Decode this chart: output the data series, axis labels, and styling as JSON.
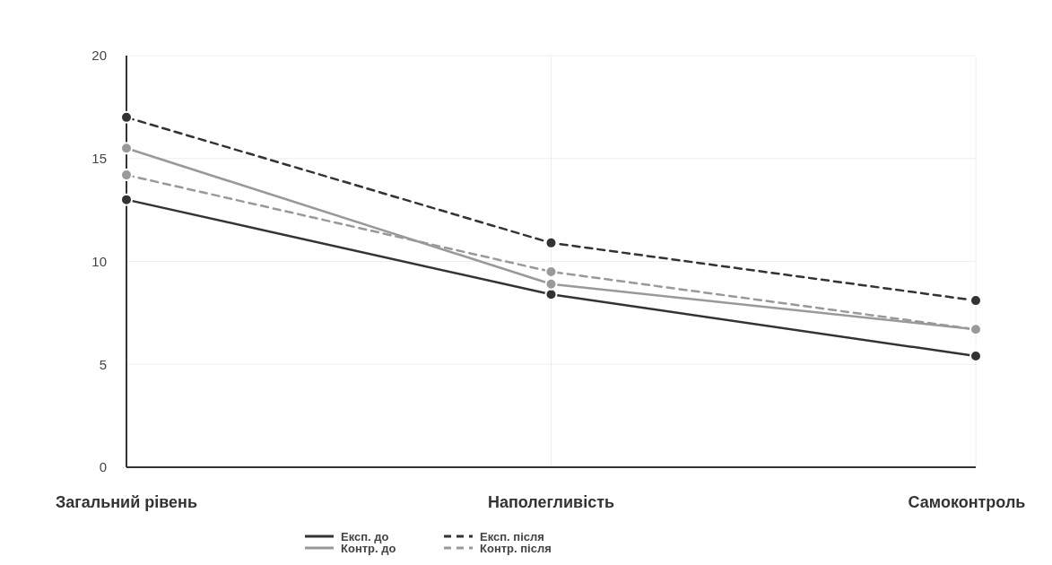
{
  "chart_data": {
    "type": "line",
    "categories": [
      "Загальний рівень",
      "Наполегливість",
      "Самоконтроль"
    ],
    "series": [
      {
        "name": "Експ. до",
        "color": "#333333",
        "line_style": "solid",
        "values": [
          13,
          8.4,
          5.4
        ]
      },
      {
        "name": "Контр. до",
        "color": "#999999",
        "line_style": "solid",
        "values": [
          15.5,
          8.9,
          6.7
        ]
      },
      {
        "name": "Експ. після",
        "color": "#333333",
        "line_style": "dashed",
        "values": [
          17,
          10.9,
          8.1
        ]
      },
      {
        "name": "Контр. після",
        "color": "#999999",
        "line_style": "dashed",
        "values": [
          14.2,
          9.5,
          6.7
        ]
      }
    ],
    "ylim": [
      0,
      20
    ],
    "yticks": [
      0,
      5,
      10,
      15,
      20
    ],
    "grid": true,
    "legend": "bottom",
    "marker": "circle"
  }
}
